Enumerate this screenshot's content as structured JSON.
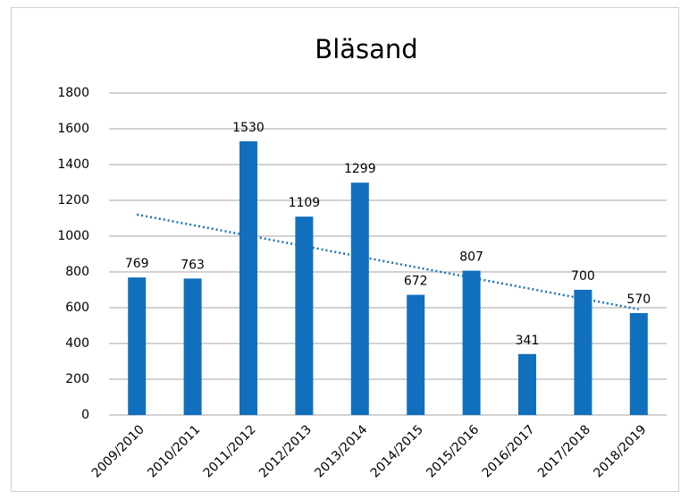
{
  "chart_data": {
    "type": "bar",
    "title": "Bläsand",
    "categories": [
      "2009/2010",
      "2010/2011",
      "2011/2012",
      "2012/2013",
      "2013/2014",
      "2014/2015",
      "2015/2016",
      "2016/2017",
      "2017/2018",
      "2018/2019"
    ],
    "values": [
      769,
      763,
      1530,
      1109,
      1299,
      672,
      807,
      341,
      700,
      570
    ],
    "color": "#1170bd",
    "ylim": [
      0,
      1800
    ],
    "yticks": [
      0,
      200,
      400,
      600,
      800,
      1000,
      1200,
      1400,
      1600,
      1800
    ],
    "grid": true,
    "trendline": "linear",
    "trendline_color": "#1a73b4"
  }
}
